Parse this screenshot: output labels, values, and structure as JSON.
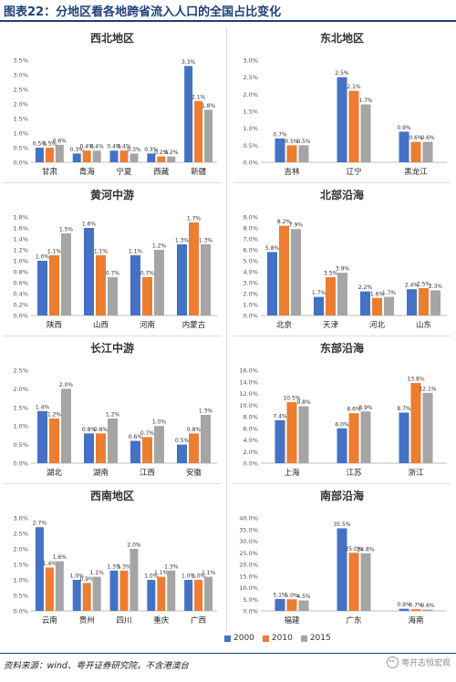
{
  "figure_title": "图表22：分地区看各地跨省流入人口的全国占比变化",
  "source_note": "资料来源：wind、粤开证券研究院，不含港澳台",
  "watermark": "粤开志恒宏观",
  "colors": {
    "2000": "#4472c4",
    "2010": "#ed7d31",
    "2015": "#a5a5a5"
  },
  "legend": [
    "2000",
    "2010",
    "2015"
  ],
  "chart_data": [
    {
      "type": "bar",
      "title": "西北地区",
      "categories": [
        "甘肃",
        "青海",
        "宁夏",
        "西藏",
        "新疆"
      ],
      "ylim": [
        0,
        3.5
      ],
      "yticks": [
        "0.0%",
        "0.5%",
        "1.0%",
        "1.5%",
        "2.0%",
        "2.5%",
        "3.0%",
        "3.5%"
      ],
      "series": [
        {
          "name": "2000",
          "values": [
            0.5,
            0.3,
            0.4,
            0.3,
            3.3
          ],
          "labels": [
            "0.5%",
            "0.3%",
            "0.4%",
            "0.3%",
            "3.3%"
          ]
        },
        {
          "name": "2010",
          "values": [
            0.5,
            0.4,
            0.4,
            0.2,
            2.1
          ],
          "labels": [
            "0.5%",
            "0.4%",
            "0.4%",
            "0.2%",
            "2.1%"
          ]
        },
        {
          "name": "2015",
          "values": [
            0.6,
            0.4,
            0.3,
            0.2,
            1.8
          ],
          "labels": [
            "0.6%",
            "0.4%",
            "0.3%",
            "0.2%",
            "1.8%"
          ]
        }
      ]
    },
    {
      "type": "bar",
      "title": "东北地区",
      "categories": [
        "吉林",
        "辽宁",
        "黑龙江"
      ],
      "ylim": [
        0,
        3.0
      ],
      "yticks": [
        "0.0%",
        "0.5%",
        "1.0%",
        "1.5%",
        "2.0%",
        "2.5%",
        "3.0%"
      ],
      "series": [
        {
          "name": "2000",
          "values": [
            0.7,
            2.5,
            0.9
          ],
          "labels": [
            "0.7%",
            "2.5%",
            "0.9%"
          ]
        },
        {
          "name": "2010",
          "values": [
            0.5,
            2.1,
            0.6
          ],
          "labels": [
            "0.5%",
            "2.1%",
            "0.6%"
          ]
        },
        {
          "name": "2015",
          "values": [
            0.5,
            1.7,
            0.6
          ],
          "labels": [
            "0.5%",
            "1.7%",
            "0.6%"
          ]
        }
      ]
    },
    {
      "type": "bar",
      "title": "黄河中游",
      "categories": [
        "陕西",
        "山西",
        "河南",
        "内蒙古"
      ],
      "ylim": [
        0,
        1.8
      ],
      "yticks": [
        "0.0%",
        "0.2%",
        "0.4%",
        "0.6%",
        "0.8%",
        "1.0%",
        "1.2%",
        "1.4%",
        "1.6%",
        "1.8%"
      ],
      "series": [
        {
          "name": "2000",
          "values": [
            1.0,
            1.6,
            1.1,
            1.3
          ],
          "labels": [
            "1.0%",
            "1.6%",
            "1.1%",
            "1.3%"
          ]
        },
        {
          "name": "2010",
          "values": [
            1.1,
            1.1,
            0.7,
            1.7
          ],
          "labels": [
            "1.1%",
            "1.1%",
            "0.7%",
            "1.7%"
          ]
        },
        {
          "name": "2015",
          "values": [
            1.5,
            0.7,
            1.2,
            1.3
          ],
          "labels": [
            "1.5%",
            "0.7%",
            "1.2%",
            "1.3%"
          ]
        }
      ]
    },
    {
      "type": "bar",
      "title": "北部沿海",
      "categories": [
        "北京",
        "天津",
        "河北",
        "山东"
      ],
      "ylim": [
        0,
        9.0
      ],
      "yticks": [
        "0.0%",
        "1.0%",
        "2.0%",
        "3.0%",
        "4.0%",
        "5.0%",
        "6.0%",
        "7.0%",
        "8.0%",
        "9.0%"
      ],
      "series": [
        {
          "name": "2000",
          "values": [
            5.8,
            1.7,
            2.2,
            2.4
          ],
          "labels": [
            "5.8%",
            "1.7%",
            "2.2%",
            "2.4%"
          ]
        },
        {
          "name": "2010",
          "values": [
            8.2,
            3.5,
            1.6,
            2.5
          ],
          "labels": [
            "8.2%",
            "3.5%",
            "1.6%",
            "2.5%"
          ]
        },
        {
          "name": "2015",
          "values": [
            7.9,
            3.9,
            1.7,
            2.3
          ],
          "labels": [
            "7.9%",
            "3.9%",
            "1.7%",
            "2.3%"
          ]
        }
      ]
    },
    {
      "type": "bar",
      "title": "长江中游",
      "categories": [
        "湖北",
        "湖南",
        "江西",
        "安徽"
      ],
      "ylim": [
        0,
        2.5
      ],
      "yticks": [
        "0.0%",
        "0.5%",
        "1.0%",
        "1.5%",
        "2.0%",
        "2.5%"
      ],
      "series": [
        {
          "name": "2000",
          "values": [
            1.4,
            0.8,
            0.6,
            0.5
          ],
          "labels": [
            "1.4%",
            "0.8%",
            "0.6%",
            "0.5%"
          ]
        },
        {
          "name": "2010",
          "values": [
            1.2,
            0.8,
            0.7,
            0.8
          ],
          "labels": [
            "1.2%",
            "0.8%",
            "0.7%",
            "0.8%"
          ]
        },
        {
          "name": "2015",
          "values": [
            2.0,
            1.2,
            1.0,
            1.3
          ],
          "labels": [
            "2.0%",
            "1.2%",
            "1.0%",
            "1.3%"
          ]
        }
      ]
    },
    {
      "type": "bar",
      "title": "东部沿海",
      "categories": [
        "上海",
        "江苏",
        "浙江"
      ],
      "ylim": [
        0,
        16.0
      ],
      "yticks": [
        "0.0%",
        "2.0%",
        "4.0%",
        "6.0%",
        "8.0%",
        "10.0%",
        "12.0%",
        "14.0%",
        "16.0%"
      ],
      "series": [
        {
          "name": "2000",
          "values": [
            7.4,
            6.0,
            8.7
          ],
          "labels": [
            "7.4%",
            "6.0%",
            "8.7%"
          ]
        },
        {
          "name": "2010",
          "values": [
            10.5,
            8.6,
            13.8
          ],
          "labels": [
            "10.5%",
            "8.6%",
            "13.8%"
          ]
        },
        {
          "name": "2015",
          "values": [
            9.8,
            8.9,
            12.1
          ],
          "labels": [
            "9.8%",
            "8.9%",
            "12.1%"
          ]
        }
      ]
    },
    {
      "type": "bar",
      "title": "西南地区",
      "categories": [
        "云南",
        "贵州",
        "四川",
        "重庆",
        "广西"
      ],
      "ylim": [
        0,
        3.0
      ],
      "yticks": [
        "0.0%",
        "0.5%",
        "1.0%",
        "1.5%",
        "2.0%",
        "2.5%",
        "3.0%"
      ],
      "series": [
        {
          "name": "2000",
          "values": [
            2.7,
            1.0,
            1.3,
            1.0,
            1.0
          ],
          "labels": [
            "2.7%",
            "1.0%",
            "1.3%",
            "1.0%",
            "1.0%"
          ]
        },
        {
          "name": "2010",
          "values": [
            1.4,
            0.9,
            1.3,
            1.1,
            1.0
          ],
          "labels": [
            "1.4%",
            "0.9%",
            "1.3%",
            "1.1%",
            "1.0%"
          ]
        },
        {
          "name": "2015",
          "values": [
            1.6,
            1.1,
            2.0,
            1.3,
            1.1
          ],
          "labels": [
            "1.6%",
            "1.1%",
            "2.0%",
            "1.3%",
            "1.1%"
          ]
        }
      ]
    },
    {
      "type": "bar",
      "title": "南部沿海",
      "categories": [
        "福建",
        "广东",
        "海南"
      ],
      "ylim": [
        0,
        40.0
      ],
      "yticks": [
        "0.0%",
        "5.0%",
        "10.0%",
        "15.0%",
        "20.0%",
        "25.0%",
        "30.0%",
        "35.0%",
        "40.0%"
      ],
      "series": [
        {
          "name": "2000",
          "values": [
            5.1,
            35.5,
            0.9
          ],
          "labels": [
            "5.1%",
            "35.5%",
            "0.9%"
          ]
        },
        {
          "name": "2010",
          "values": [
            5.0,
            25.0,
            0.7
          ],
          "labels": [
            "5.0%",
            "25.0%",
            "0.7%"
          ]
        },
        {
          "name": "2015",
          "values": [
            4.5,
            24.8,
            0.6
          ],
          "labels": [
            "4.5%",
            "24.8%",
            "0.6%"
          ]
        }
      ]
    }
  ]
}
